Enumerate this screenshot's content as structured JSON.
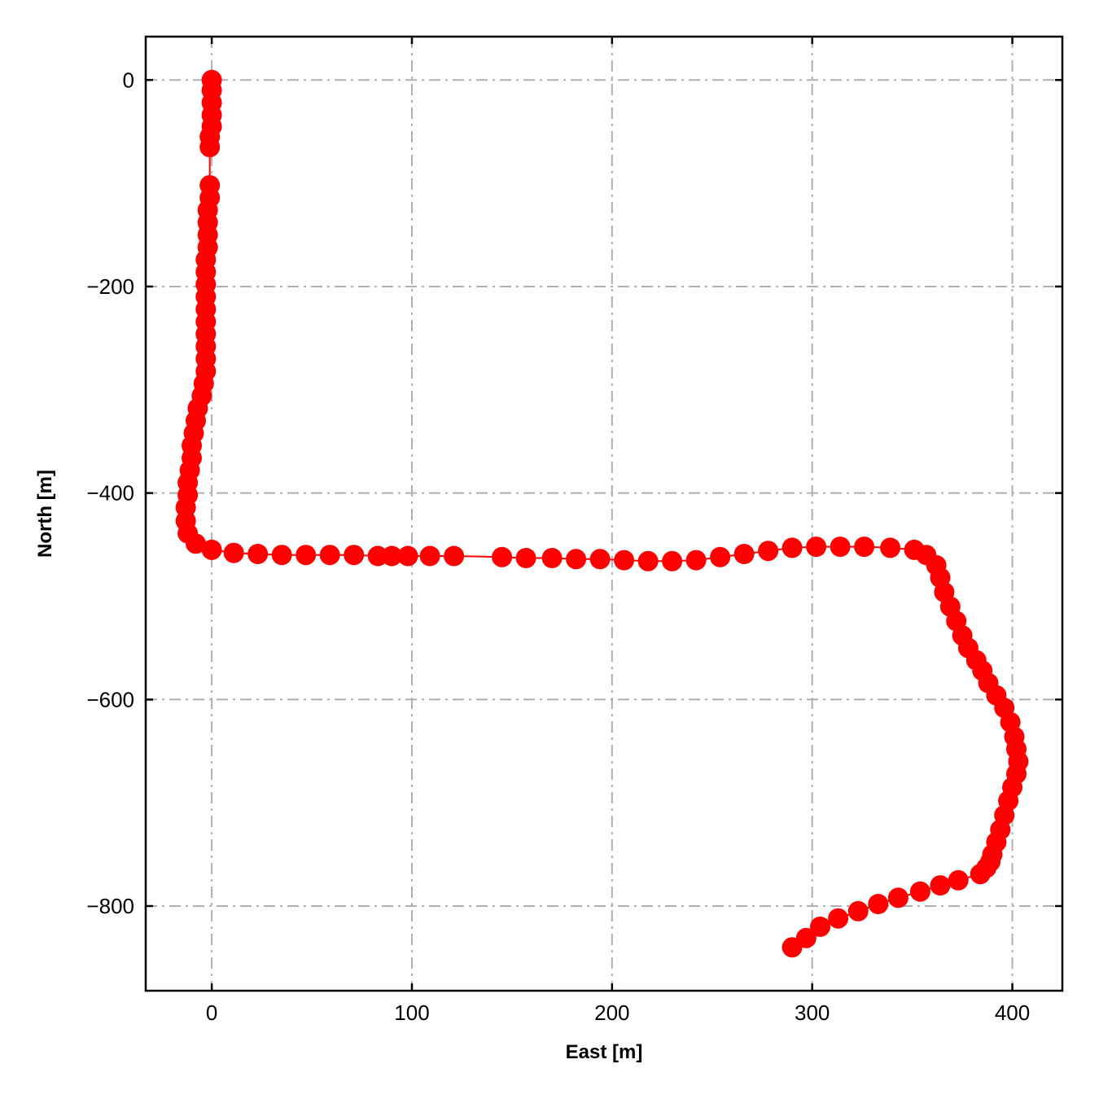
{
  "chart_data": {
    "type": "scatter",
    "title": "",
    "xlabel": "East [m]",
    "ylabel": "North [m]",
    "xlim": [
      -33,
      425
    ],
    "ylim": [
      -882,
      42
    ],
    "xticks": [
      0,
      100,
      200,
      300,
      400
    ],
    "yticks": [
      0,
      -200,
      -400,
      -600,
      -800
    ],
    "xtick_labels": [
      "0",
      "100",
      "200",
      "300",
      "400"
    ],
    "ytick_labels": [
      "0",
      "−200",
      "−400",
      "−600",
      "−800"
    ],
    "grid": true,
    "legend": "none",
    "series": [
      {
        "color": "#ff0000",
        "marker": "circle",
        "line": true,
        "x": [
          0,
          0,
          0,
          0,
          0,
          -1,
          -1,
          -1,
          -1,
          -2,
          -2,
          -2,
          -2,
          -3,
          -3,
          -3,
          -3,
          -3,
          -3,
          -3,
          -3,
          -3,
          -3,
          -4,
          -5,
          -7,
          -8,
          -9,
          -10,
          -10,
          -11,
          -12,
          -12,
          -13,
          -13,
          -12,
          -8,
          0,
          11,
          23,
          35,
          47,
          59,
          71,
          83,
          90,
          98,
          109,
          121,
          145,
          157,
          170,
          182,
          194,
          206,
          218,
          230,
          242,
          254,
          266,
          278,
          290,
          302,
          314,
          326,
          339,
          351,
          357,
          362,
          364,
          366,
          369,
          372,
          375,
          378,
          382,
          385,
          388,
          392,
          396,
          399,
          401,
          402,
          403,
          402,
          400,
          398,
          396,
          394,
          392,
          390,
          389,
          387,
          384,
          373,
          364,
          354,
          343,
          333,
          323,
          313,
          304,
          297,
          290
        ],
        "y": [
          0,
          -10,
          -22,
          -34,
          -45,
          -55,
          -65,
          -102,
          -114,
          -126,
          -138,
          -150,
          -162,
          -174,
          -186,
          -198,
          -210,
          -222,
          -234,
          -246,
          -258,
          -270,
          -282,
          -294,
          -306,
          -318,
          -330,
          -342,
          -354,
          -366,
          -378,
          -390,
          -402,
          -414,
          -427,
          -439,
          -449,
          -455,
          -458,
          -459,
          -460,
          -460,
          -460,
          -460,
          -461,
          -461,
          -461,
          -461,
          -461,
          -462,
          -463,
          -463,
          -464,
          -464,
          -465,
          -466,
          -466,
          -465,
          -462,
          -459,
          -456,
          -453,
          -452,
          -452,
          -452,
          -453,
          -455,
          -460,
          -470,
          -482,
          -496,
          -510,
          -524,
          -538,
          -550,
          -562,
          -572,
          -584,
          -596,
          -608,
          -622,
          -636,
          -648,
          -660,
          -672,
          -685,
          -698,
          -712,
          -726,
          -738,
          -750,
          -757,
          -763,
          -769,
          -775,
          -780,
          -786,
          -792,
          -798,
          -805,
          -812,
          -820,
          -831,
          -840
        ]
      }
    ]
  }
}
